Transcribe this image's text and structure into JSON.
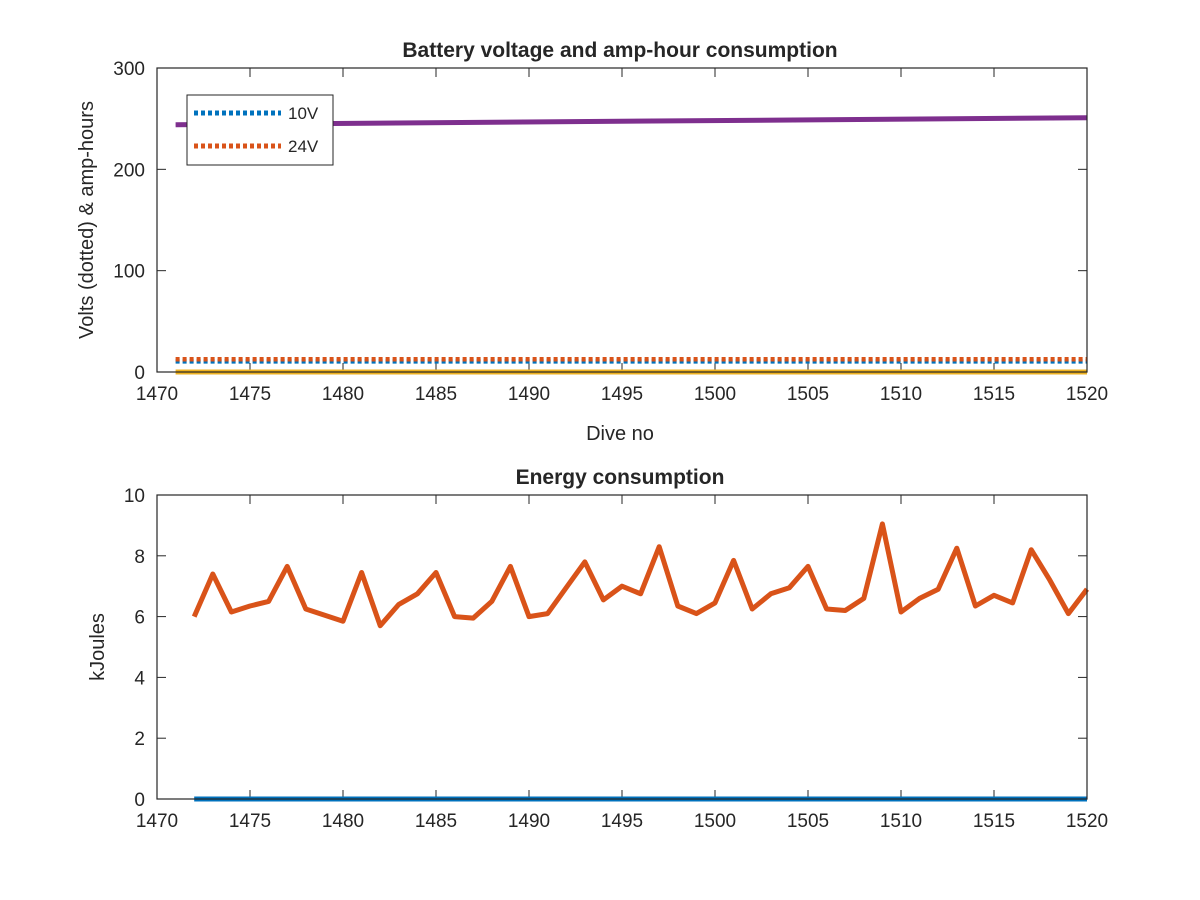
{
  "chart_data": [
    {
      "type": "line",
      "title": "Battery voltage and amp-hour consumption",
      "xlabel": "Dive no",
      "ylabel": "Volts (dotted) & amp-hours",
      "xlim": [
        1470,
        1520
      ],
      "ylim": [
        0,
        300
      ],
      "xticks": [
        1470,
        1475,
        1480,
        1485,
        1490,
        1495,
        1500,
        1505,
        1510,
        1515,
        1520
      ],
      "yticks": [
        0,
        100,
        200,
        300
      ],
      "grid": false,
      "legend": {
        "location": "top-left",
        "entries": [
          "10V",
          "24V"
        ]
      },
      "series": [
        {
          "name": "10V",
          "style": "dotted",
          "color": "#0072BD",
          "x": [
            1471,
            1520
          ],
          "y": [
            10.5,
            10.5
          ]
        },
        {
          "name": "24V",
          "style": "dotted",
          "color": "#D95319",
          "x": [
            1471,
            1520
          ],
          "y": [
            12.5,
            12.5
          ]
        },
        {
          "style": "solid",
          "color": "#EDB120",
          "x": [
            1471,
            1520
          ],
          "y": [
            0,
            0
          ]
        },
        {
          "style": "solid",
          "color": "#7E2F8E",
          "x": [
            1471,
            1520
          ],
          "y": [
            244,
            251
          ]
        }
      ]
    },
    {
      "type": "line",
      "title": "Energy consumption",
      "xlabel": "",
      "ylabel": "kJoules",
      "xlim": [
        1470,
        1520
      ],
      "ylim": [
        0,
        10
      ],
      "xticks": [
        1470,
        1475,
        1480,
        1485,
        1490,
        1495,
        1500,
        1505,
        1510,
        1515,
        1520
      ],
      "yticks": [
        0,
        2,
        4,
        6,
        8,
        10
      ],
      "grid": false,
      "series": [
        {
          "style": "solid",
          "color": "#D95319",
          "x": [
            1472,
            1473,
            1474,
            1475,
            1476,
            1477,
            1478,
            1479,
            1480,
            1481,
            1482,
            1483,
            1484,
            1485,
            1486,
            1487,
            1488,
            1489,
            1490,
            1491,
            1492,
            1493,
            1494,
            1495,
            1496,
            1497,
            1498,
            1499,
            1500,
            1501,
            1502,
            1503,
            1504,
            1505,
            1506,
            1507,
            1508,
            1509,
            1510,
            1511,
            1512,
            1513,
            1514,
            1515,
            1516,
            1517,
            1518,
            1519,
            1520
          ],
          "y": [
            6.0,
            7.4,
            6.15,
            6.35,
            6.5,
            7.65,
            6.25,
            6.05,
            5.85,
            7.45,
            5.7,
            6.4,
            6.75,
            7.45,
            6.0,
            5.95,
            6.5,
            7.65,
            6.0,
            6.1,
            6.95,
            7.8,
            6.55,
            7.0,
            6.75,
            8.3,
            6.35,
            6.1,
            6.45,
            7.85,
            6.25,
            6.75,
            6.95,
            7.65,
            6.25,
            6.2,
            6.6,
            9.05,
            6.15,
            6.6,
            6.9,
            8.25,
            6.35,
            6.7,
            6.45,
            8.2,
            7.2,
            6.1,
            6.9
          ]
        },
        {
          "style": "solid",
          "color": "#0072BD",
          "x": [
            1472,
            1520
          ],
          "y": [
            0,
            0
          ]
        }
      ]
    }
  ]
}
